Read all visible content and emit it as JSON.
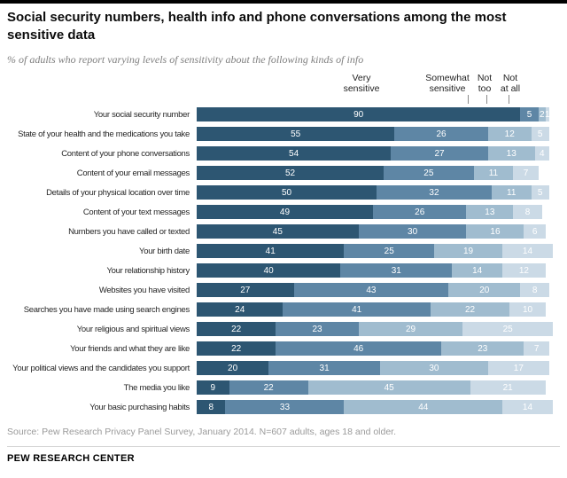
{
  "page": {
    "title": "Social security numbers, health info and phone conversations among the most sensitive data",
    "subtitle": "% of adults who report varying levels of sensitivity about the following kinds of info",
    "source": "Source: Pew Research Privacy Panel Survey, January 2014. N=607 adults, ages 18 and older.",
    "brand": "PEW RESEARCH CENTER"
  },
  "chart_data": {
    "type": "bar",
    "orientation": "horizontal",
    "stacked": true,
    "xlim": [
      0,
      100
    ],
    "legend_position": "top",
    "categories": [
      "Your social security number",
      "State of your health and the medications you take",
      "Content of your phone conversations",
      "Content of your email messages",
      "Details of your physical location over time",
      "Content of your text messages",
      "Numbers you have called or texted",
      "Your birth date",
      "Your relationship history",
      "Websites you have visited",
      "Searches you have made using search engines",
      "Your religious and spiritual views",
      "Your friends and what they are like",
      "Your political views and the candidates you support",
      "The media you like",
      "Your basic purchasing habits"
    ],
    "series": [
      {
        "name": "Very sensitive",
        "color": "#2d5672",
        "values": [
          90,
          55,
          54,
          52,
          50,
          49,
          45,
          41,
          40,
          27,
          24,
          22,
          22,
          20,
          9,
          8
        ]
      },
      {
        "name": "Somewhat sensitive",
        "color": "#5e86a5",
        "values": [
          5,
          26,
          27,
          25,
          32,
          26,
          30,
          25,
          31,
          43,
          41,
          23,
          46,
          31,
          22,
          33
        ]
      },
      {
        "name": "Not too sensitive",
        "color": "#a0bccf",
        "values": [
          2,
          12,
          13,
          11,
          11,
          13,
          16,
          19,
          14,
          20,
          22,
          29,
          23,
          30,
          45,
          44
        ]
      },
      {
        "name": "Not at all sensitive",
        "color": "#cbdae6",
        "values": [
          1,
          5,
          4,
          7,
          5,
          8,
          6,
          14,
          12,
          8,
          10,
          25,
          7,
          17,
          21,
          14
        ]
      }
    ],
    "legend": [
      {
        "line1": "Very",
        "line2": "sensitive"
      },
      {
        "line1": "Somewhat",
        "line2": "sensitive"
      },
      {
        "line1": "Not",
        "line2": "too"
      },
      {
        "line1": "Not",
        "line2": "at all"
      }
    ]
  }
}
